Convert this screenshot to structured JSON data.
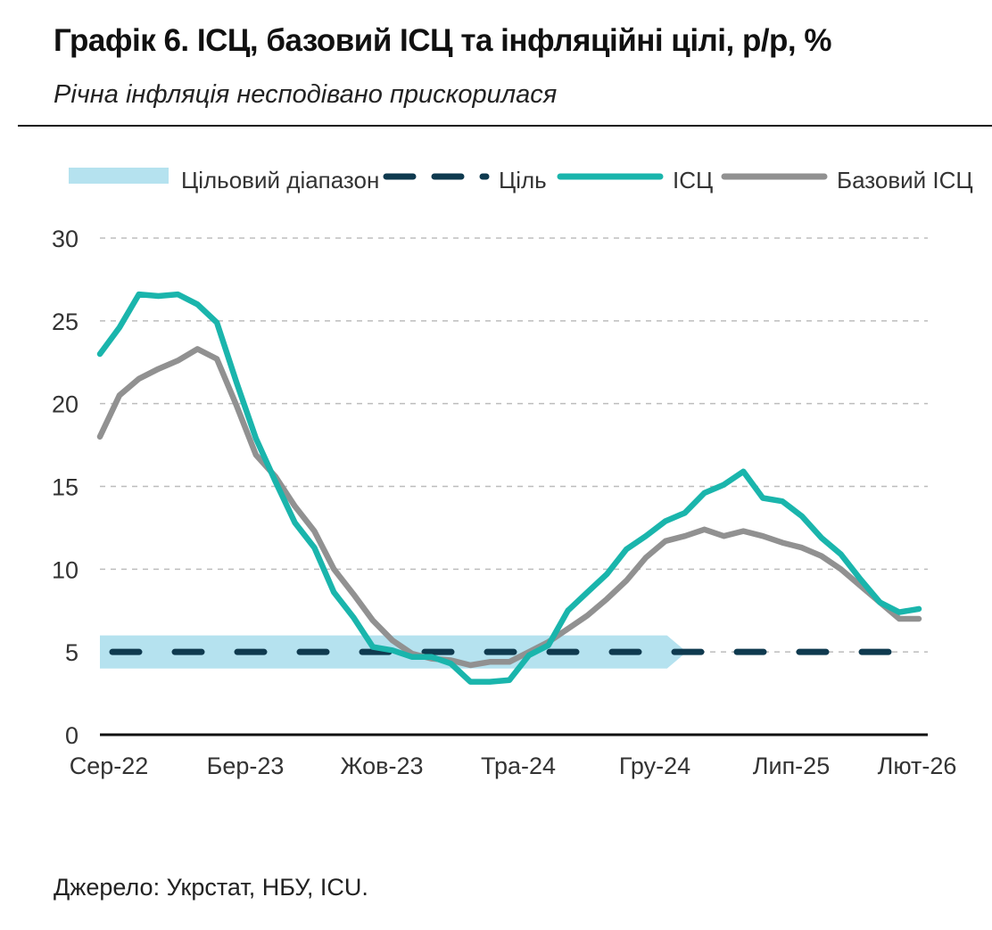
{
  "header": {
    "title": "Графік 6. ІСЦ, базовий ІСЦ та інфляційні цілі, р/р, %",
    "subtitle": "Річна інфляція несподівано прискорилася"
  },
  "footer": {
    "source": "Джерело: Укрстат, НБУ, ICU."
  },
  "colors": {
    "cpi": "#1ab5ac",
    "core": "#919191",
    "target": "#0f3a4f",
    "band": "#b5e2ef",
    "grid": "#bdbdbd",
    "axis": "#111111",
    "text": "#333333"
  },
  "chart_data": {
    "type": "line",
    "title": "Графік 6. ІСЦ, базовий ІСЦ та інфляційні цілі, р/р, %",
    "subtitle": "Річна інфляція несподівано прискорилася",
    "xlabel": "",
    "ylabel": "",
    "ylim": [
      0,
      30
    ],
    "yticks": [
      0,
      5,
      10,
      15,
      20,
      25,
      30
    ],
    "grid": true,
    "legend_position": "top",
    "x_tick_labels": [
      "Сер-22",
      "Бер-23",
      "Жов-23",
      "Тра-24",
      "Гру-24",
      "Лип-25",
      "Лют-26"
    ],
    "x_tick_indices": [
      0,
      7,
      14,
      21,
      28,
      35,
      42
    ],
    "legend": {
      "band": "Цільовий діапазон",
      "target": "Ціль",
      "cpi": "ІСЦ",
      "core": "Базовий ІСЦ"
    },
    "target_band": {
      "low": 4,
      "high": 6,
      "end_index": 30
    },
    "target_value": 5,
    "series": [
      {
        "name": "ІСЦ",
        "values": [
          23.0,
          24.6,
          26.6,
          26.5,
          26.6,
          26.0,
          24.9,
          21.3,
          17.9,
          15.3,
          12.8,
          11.3,
          8.6,
          7.1,
          5.3,
          5.1,
          4.7,
          4.7,
          4.3,
          3.2,
          3.2,
          3.3,
          4.8,
          5.4,
          7.5,
          8.6,
          9.7,
          11.2,
          12.0,
          12.9,
          13.4,
          14.6,
          15.1,
          15.9,
          14.3,
          14.1,
          13.2,
          11.9,
          10.9,
          9.4,
          8.0,
          7.4,
          7.6
        ]
      },
      {
        "name": "Базовий ІСЦ",
        "values": [
          18.0,
          20.5,
          21.5,
          22.1,
          22.6,
          23.3,
          22.7,
          19.9,
          16.9,
          15.6,
          13.8,
          12.3,
          10.0,
          8.5,
          6.9,
          5.7,
          4.9,
          4.6,
          4.5,
          4.2,
          4.4,
          4.4,
          5.0,
          5.6,
          6.4,
          7.2,
          8.2,
          9.3,
          10.7,
          11.7,
          12.0,
          12.4,
          12.0,
          12.3,
          12.0,
          11.6,
          11.3,
          10.8,
          10.0,
          9.0,
          8.0,
          7.0,
          7.0
        ]
      }
    ]
  }
}
